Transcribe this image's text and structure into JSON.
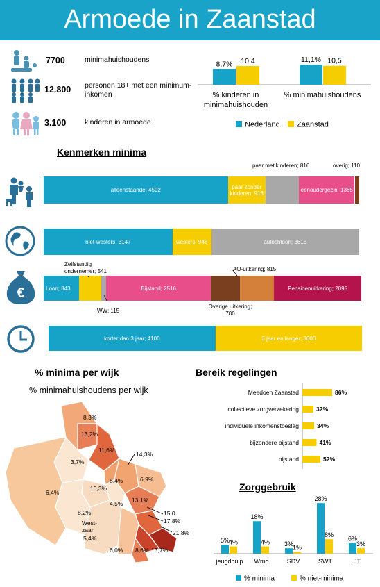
{
  "title": "Armoede in Zaanstad",
  "stats": [
    {
      "icon": "family-icon",
      "value": "7700",
      "label": "minimahuishoudens"
    },
    {
      "icon": "adults-icon",
      "value": "12.800",
      "label": "personen 18+ met een minimum-inkomen"
    },
    {
      "icon": "children-icon",
      "value": "3.100",
      "label": "kinderen in armoede"
    }
  ],
  "colors": {
    "blue": "#17a3c7",
    "yellow": "#f6cd00",
    "pink": "#e84e8a",
    "grey": "#a8a8a8",
    "brown": "#7a3f1f",
    "orange": "#d47f3a",
    "maroon": "#b5134c"
  },
  "chart_data": [
    {
      "id": "compare",
      "type": "bar",
      "categories": [
        "% kinderen in minimahuishouden",
        "% minimahuishoudens"
      ],
      "series": [
        {
          "name": "Nederland",
          "values": [
            8.7,
            11.1
          ],
          "labels": [
            "8,7%",
            "11,1%"
          ]
        },
        {
          "name": "Zaanstad",
          "values": [
            10.4,
            10.5
          ],
          "labels": [
            "10,4",
            "10,5"
          ]
        }
      ]
    },
    {
      "id": "kenmerken",
      "type": "bar",
      "title": "Kenmerken minima",
      "rows": [
        {
          "icon": "family-icon",
          "segments": [
            {
              "label": "alleenstaande; 4502",
              "value": 4502,
              "color": "#17a3c7"
            },
            {
              "label": "paar zonder kinderen; 918",
              "value": 918,
              "color": "#f6cd00"
            },
            {
              "label": "paar met kinderen; 816",
              "value": 816,
              "color": "#a8a8a8"
            },
            {
              "label": "eenoudergezin; 1365",
              "value": 1365,
              "color": "#e84e8a"
            },
            {
              "label": "overig; 110",
              "value": 110,
              "color": "#7a3f1f"
            }
          ]
        },
        {
          "icon": "globe-icon",
          "segments": [
            {
              "label": "niet-westers; 3147",
              "value": 3147,
              "color": "#17a3c7"
            },
            {
              "label": "westers; 946",
              "value": 946,
              "color": "#f6cd00"
            },
            {
              "label": "autochtoon; 3618",
              "value": 3618,
              "color": "#a8a8a8"
            }
          ]
        },
        {
          "icon": "money-bag-icon",
          "segments": [
            {
              "label": "Loon; 843",
              "value": 843,
              "color": "#17a3c7"
            },
            {
              "label": "Zelfstandig ondernemer; 541",
              "value": 541,
              "color": "#f6cd00"
            },
            {
              "label": "WW; 115",
              "value": 115,
              "color": "#a8a8a8"
            },
            {
              "label": "Bijstand; 2516",
              "value": 2516,
              "color": "#e84e8a"
            },
            {
              "label": "Overige uitkering; 700",
              "value": 700,
              "color": "#7a3f1f"
            },
            {
              "label": "AO-uitkering; 815",
              "value": 815,
              "color": "#d47f3a"
            },
            {
              "label": "Pensioenuitkering; 2095",
              "value": 2095,
              "color": "#b5134c"
            }
          ]
        },
        {
          "icon": "clock-icon",
          "segments": [
            {
              "label": "korter dan 3 jaar; 4100",
              "value": 4100,
              "color": "#17a3c7"
            },
            {
              "label": "3 jaar en langer; 3600",
              "value": 3600,
              "color": "#f6cd00"
            }
          ]
        }
      ]
    },
    {
      "id": "bereik",
      "type": "bar",
      "title": "Bereik regelingen",
      "categories": [
        "Meedoen Zaanstad",
        "collectieve zorgverzekering",
        "individuele inkomenstoeslag",
        "bijzondere bijstand",
        "bijstand"
      ],
      "values": [
        86,
        32,
        34,
        41,
        52
      ],
      "labels": [
        "86%",
        "32%",
        "34%",
        "41%",
        "52%"
      ]
    },
    {
      "id": "zorg",
      "type": "bar",
      "title": "Zorggebruik",
      "categories": [
        "jeugdhulp",
        "Wmo",
        "SDV",
        "SWT",
        "JT"
      ],
      "series": [
        {
          "name": "% minima",
          "values": [
            5,
            18,
            3,
            28,
            6
          ],
          "labels": [
            "5%",
            "18%",
            "3%",
            "28%",
            "6%"
          ]
        },
        {
          "name": "% niet-minima",
          "values": [
            4,
            4,
            1,
            8,
            3
          ],
          "labels": [
            "4%",
            "4%",
            "1%",
            "8%",
            "3%"
          ]
        }
      ]
    }
  ],
  "map": {
    "title": "% minima per wijk",
    "subtitle": "% minimahuishoudens per wijk",
    "values": [
      "8,3%",
      "13,2%",
      "11,6%",
      "14,3%",
      "3,7%",
      "8,4%",
      "6,9%",
      "10,3%",
      "4,5%",
      "13,1%",
      "6,4%",
      "8,2%",
      "15,0",
      "17,8%",
      "21,8%",
      "6,0%",
      "8,6%",
      "13,7%"
    ],
    "west_label": "West-zaan",
    "west_value": "5,4%"
  }
}
